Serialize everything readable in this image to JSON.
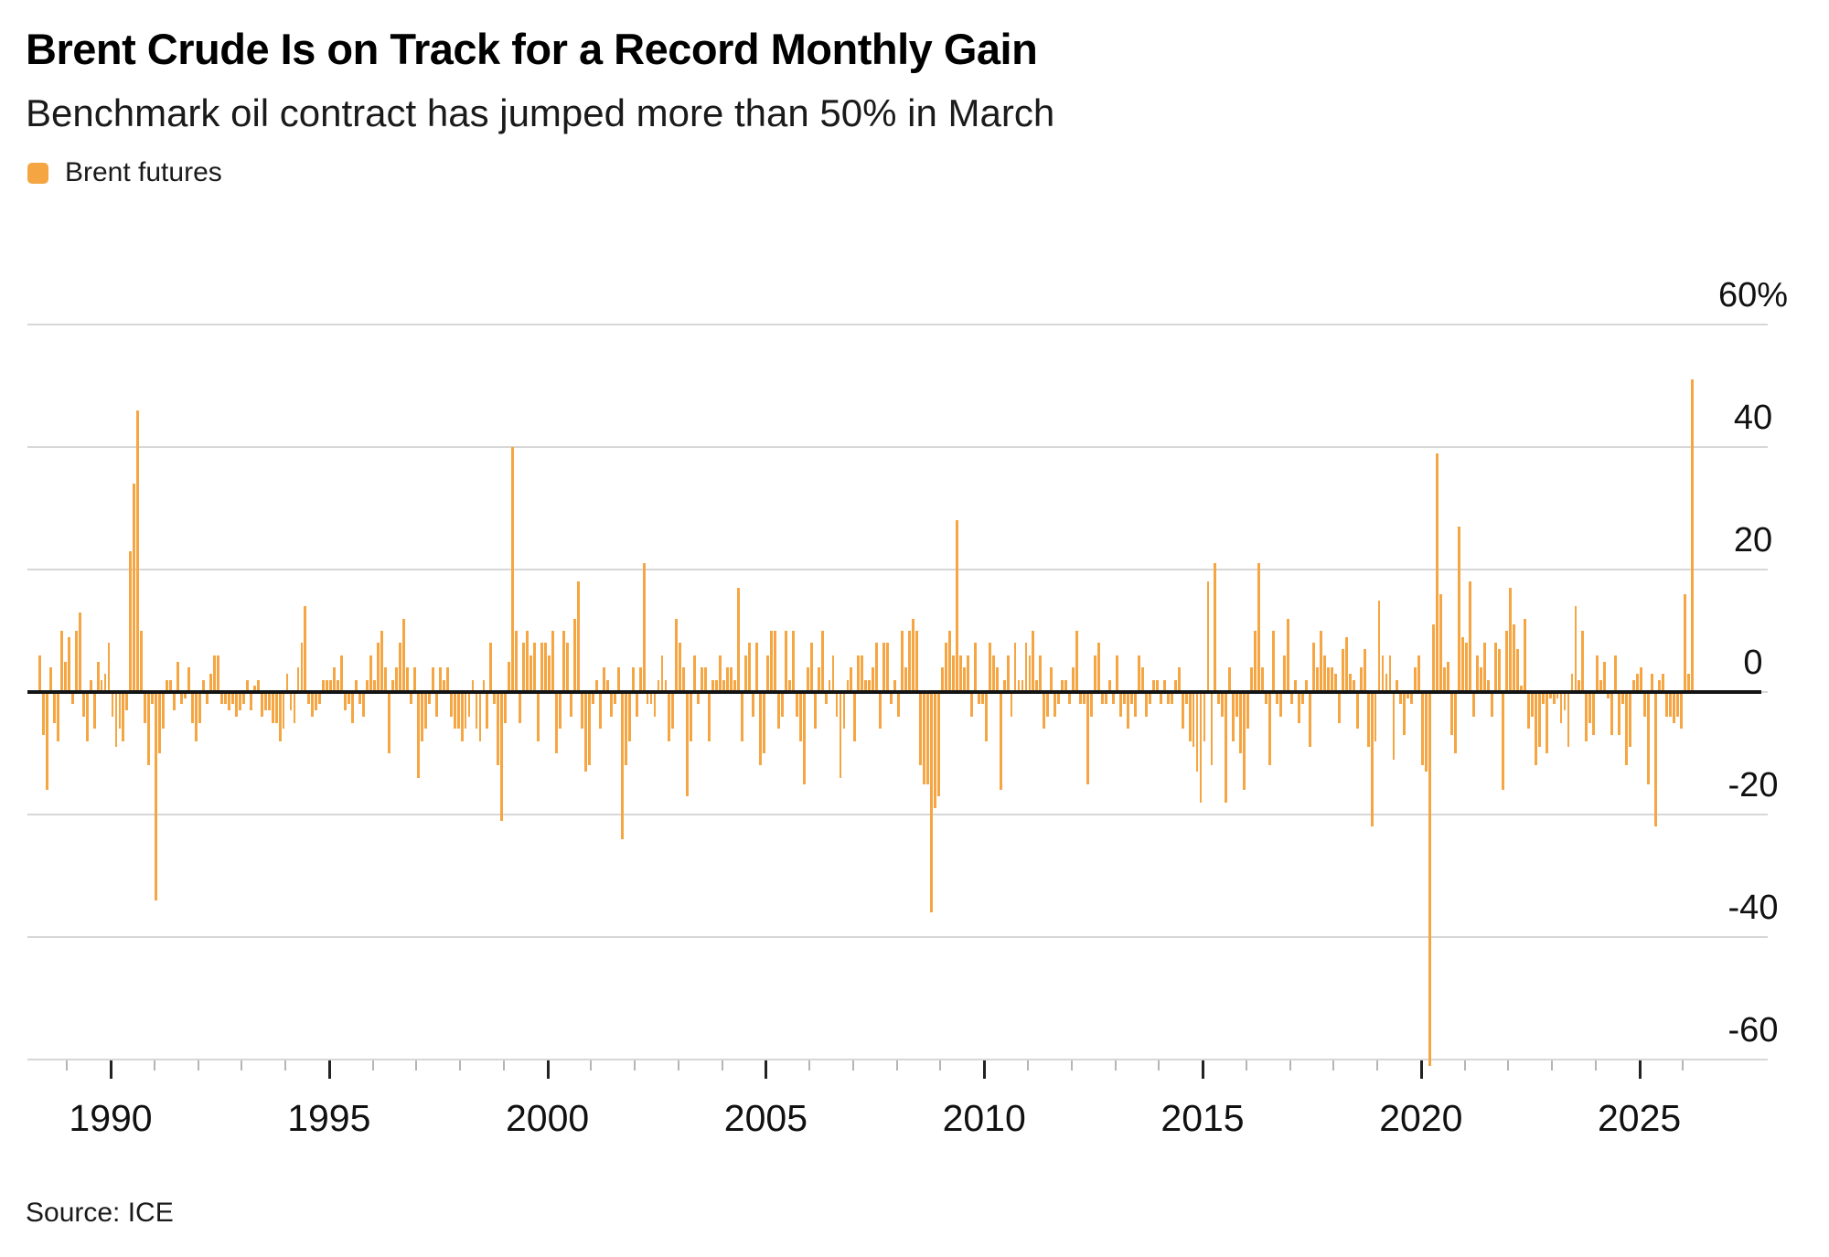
{
  "header": {
    "title": "Brent Crude Is on Track for a Record Monthly Gain",
    "subtitle": "Benchmark oil contract has jumped more than 50% in March",
    "legend": {
      "label": "Brent futures",
      "color": "#F5A643"
    }
  },
  "chart_data": {
    "type": "bar",
    "title": "Brent Crude Is on Track for a Record Monthly Gain",
    "subtitle": "Benchmark oil contract has jumped more than 50% in March",
    "series_name": "Brent futures",
    "unit": "percent monthly change",
    "frequency": "monthly",
    "start": {
      "year": 1988,
      "month": 5
    },
    "end": {
      "year": 2026,
      "month": 3
    },
    "bar_color": "#F5A643",
    "grid": "horizontal",
    "legend_position": "top-left",
    "ylim": [
      -65,
      62
    ],
    "yticks": [
      {
        "value": 60,
        "label": "60%"
      },
      {
        "value": 40,
        "label": "40"
      },
      {
        "value": 20,
        "label": "20"
      },
      {
        "value": 0,
        "label": "0"
      },
      {
        "value": -20,
        "label": "-20"
      },
      {
        "value": -40,
        "label": "-40"
      },
      {
        "value": -60,
        "label": "-60"
      }
    ],
    "xticks_major": [
      1990,
      1995,
      2000,
      2005,
      2010,
      2015,
      2020,
      2025
    ],
    "xticks_minor_start": 1989,
    "xticks_minor_end": 2026,
    "values": [
      6,
      -7,
      -16,
      4,
      -5,
      -8,
      10,
      5,
      9,
      -2,
      10,
      13,
      -4,
      -8,
      2,
      -6,
      5,
      2,
      3,
      8,
      -4,
      -9,
      -6,
      -8,
      -3,
      23,
      34,
      46,
      10,
      -5,
      -12,
      -2,
      -34,
      -10,
      -6,
      2,
      2,
      -3,
      5,
      -2,
      -1,
      4,
      -5,
      -8,
      -5,
      2,
      -2,
      3,
      6,
      6,
      -2,
      -2,
      -3,
      -2,
      -4,
      -3,
      -2,
      2,
      -3,
      1,
      2,
      -4,
      -3,
      -3,
      -5,
      -5,
      -8,
      -6,
      3,
      -3,
      -5,
      4,
      8,
      14,
      -2,
      -4,
      -3,
      -2,
      2,
      2,
      2,
      4,
      2,
      6,
      -3,
      -2,
      -5,
      2,
      -2,
      -4,
      2,
      6,
      2,
      8,
      10,
      4,
      -10,
      2,
      4,
      8,
      12,
      4,
      -2,
      4,
      -14,
      -8,
      -6,
      -2,
      4,
      -4,
      4,
      2,
      4,
      -4,
      -6,
      -6,
      -8,
      -6,
      -4,
      2,
      -6,
      -8,
      2,
      -6,
      8,
      -2,
      -12,
      -21,
      -5,
      5,
      40,
      10,
      -5,
      8,
      10,
      6,
      8,
      -8,
      8,
      8,
      6,
      10,
      -10,
      -6,
      10,
      8,
      -4,
      12,
      18,
      -6,
      -13,
      -12,
      -2,
      2,
      -6,
      4,
      2,
      -4,
      -2,
      4,
      -24,
      -12,
      -8,
      4,
      -4,
      4,
      21,
      -2,
      -2,
      -4,
      2,
      6,
      2,
      -8,
      -6,
      12,
      8,
      4,
      -17,
      -8,
      6,
      -2,
      4,
      4,
      -8,
      2,
      2,
      6,
      2,
      4,
      4,
      2,
      17,
      -8,
      6,
      8,
      -4,
      8,
      -12,
      -10,
      6,
      10,
      10,
      -6,
      -4,
      10,
      2,
      10,
      -4,
      -8,
      -15,
      4,
      8,
      -6,
      4,
      10,
      -2,
      2,
      6,
      -4,
      -14,
      -6,
      2,
      4,
      -8,
      6,
      6,
      2,
      2,
      4,
      8,
      -6,
      8,
      8,
      -2,
      2,
      -4,
      10,
      4,
      10,
      12,
      10,
      -12,
      -15,
      -15,
      -36,
      -19,
      -17,
      4,
      8,
      10,
      6,
      28,
      6,
      4,
      6,
      -4,
      8,
      -2,
      -2,
      -8,
      8,
      6,
      4,
      -16,
      2,
      6,
      -4,
      8,
      2,
      2,
      8,
      6,
      10,
      2,
      6,
      -6,
      -4,
      4,
      -4,
      -2,
      2,
      2,
      -2,
      4,
      10,
      -2,
      -2,
      -15,
      -4,
      6,
      8,
      -2,
      -2,
      2,
      -2,
      6,
      -4,
      -2,
      -6,
      -2,
      -4,
      6,
      4,
      -4,
      -2,
      2,
      2,
      -2,
      2,
      -2,
      -2,
      2,
      4,
      -6,
      -2,
      -8,
      -9,
      -13,
      -18,
      -8,
      18,
      -12,
      21,
      -2,
      -4,
      -18,
      4,
      -8,
      -4,
      -10,
      -16,
      -6,
      4,
      10,
      21,
      4,
      -2,
      -12,
      10,
      -2,
      -4,
      6,
      12,
      -2,
      2,
      -5,
      -2,
      2,
      -9,
      8,
      4,
      10,
      6,
      4,
      4,
      3,
      -5,
      7,
      9,
      3,
      2,
      -6,
      4,
      7,
      -9,
      -22,
      -8,
      15,
      6,
      3,
      6,
      -11,
      2,
      -2,
      -7,
      -1,
      -2,
      4,
      6,
      -12,
      -13,
      -61,
      11,
      39,
      16,
      4,
      5,
      -7,
      -10,
      27,
      9,
      8,
      18,
      -4,
      6,
      4,
      8,
      2,
      -4,
      8,
      7,
      -16,
      10,
      17,
      11,
      7,
      1,
      12,
      -6,
      -4,
      -12,
      -9,
      -2,
      -10,
      -1,
      -2,
      -1,
      -5,
      -3,
      -9,
      3,
      14,
      2,
      10,
      -8,
      -5,
      -7,
      6,
      2,
      5,
      -1,
      -7,
      6,
      -7,
      -2,
      -12,
      -9,
      2,
      3,
      4,
      -4,
      -15,
      3,
      -22,
      2,
      3,
      -4,
      -4,
      -5,
      -4,
      -6,
      16,
      3,
      51
    ]
  },
  "footer": {
    "source": "Source: ICE"
  }
}
